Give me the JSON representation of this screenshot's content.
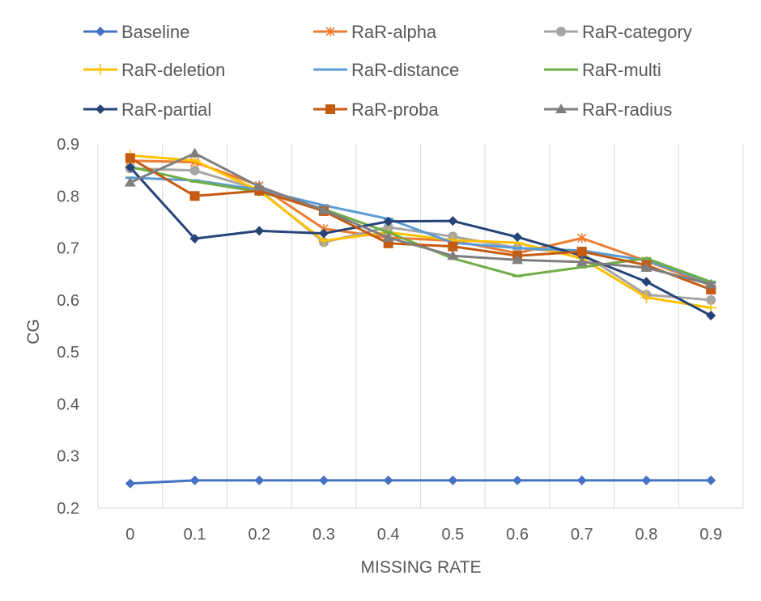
{
  "chart_data": {
    "type": "line",
    "xlabel": "MISSING RATE",
    "ylabel": "CG",
    "categories": [
      "0",
      "0.1",
      "0.2",
      "0.3",
      "0.4",
      "0.5",
      "0.6",
      "0.7",
      "0.8",
      "0.9"
    ],
    "ylim": [
      0.2,
      0.9
    ],
    "yticks": [
      "0.2",
      "0.3",
      "0.4",
      "0.5",
      "0.6",
      "0.7",
      "0.8",
      "0.9"
    ],
    "grid": "vertical",
    "legend_position": "top",
    "series": [
      {
        "name": "Baseline",
        "color": "#4472C4",
        "marker": "diamond",
        "values": [
          0.247,
          0.253,
          0.253,
          0.253,
          0.253,
          0.253,
          0.253,
          0.253,
          0.253,
          0.253
        ]
      },
      {
        "name": "RaR-alpha",
        "color": "#ED7D31",
        "marker": "star",
        "values": [
          0.868,
          0.865,
          0.82,
          0.737,
          0.72,
          0.714,
          0.69,
          0.719,
          0.675,
          0.628
        ]
      },
      {
        "name": "RaR-category",
        "color": "#A5A5A5",
        "marker": "circle",
        "values": [
          0.853,
          0.849,
          0.812,
          0.711,
          0.74,
          0.722,
          0.7,
          0.69,
          0.61,
          0.6
        ]
      },
      {
        "name": "RaR-deletion",
        "color": "#FFC000",
        "marker": "plus",
        "values": [
          0.878,
          0.868,
          0.81,
          0.714,
          0.73,
          0.715,
          0.71,
          0.68,
          0.605,
          0.585
        ]
      },
      {
        "name": "RaR-distance",
        "color": "#5B9BD5",
        "marker": "dash",
        "values": [
          0.835,
          0.83,
          0.812,
          0.782,
          0.756,
          0.71,
          0.7,
          0.695,
          0.676,
          0.633
        ]
      },
      {
        "name": "RaR-multi",
        "color": "#70AD47",
        "marker": "dash",
        "values": [
          0.856,
          0.828,
          0.808,
          0.775,
          0.73,
          0.68,
          0.646,
          0.663,
          0.68,
          0.635
        ]
      },
      {
        "name": "RaR-partial",
        "color": "#264478",
        "marker": "diamond",
        "values": [
          0.855,
          0.718,
          0.733,
          0.728,
          0.751,
          0.752,
          0.721,
          0.685,
          0.635,
          0.57
        ]
      },
      {
        "name": "RaR-proba",
        "color": "#C55A11",
        "marker": "square",
        "values": [
          0.873,
          0.8,
          0.81,
          0.771,
          0.709,
          0.703,
          0.685,
          0.693,
          0.667,
          0.62
        ]
      },
      {
        "name": "RaR-radius",
        "color": "#7F7F7F",
        "marker": "triangle",
        "values": [
          0.826,
          0.882,
          0.818,
          0.773,
          0.72,
          0.685,
          0.677,
          0.673,
          0.662,
          0.63
        ]
      }
    ]
  }
}
